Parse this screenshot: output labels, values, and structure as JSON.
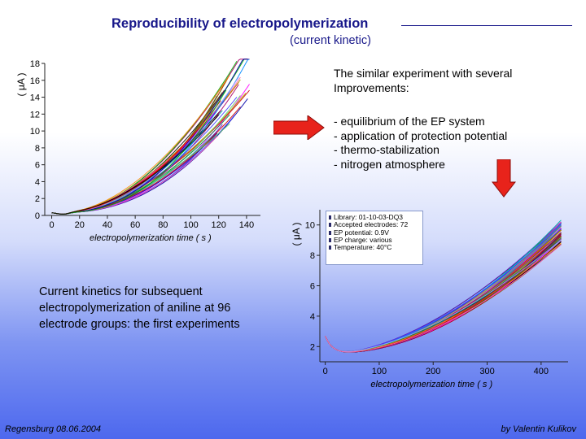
{
  "slide": {
    "title": "Reproducibility of electropolymerization",
    "subtitle": "(current kinetic)",
    "right_intro": [
      "The similar experiment with several",
      "Improvements:"
    ],
    "bullets": [
      "- equilibrium of the EP system",
      "- application of protection potential",
      "- thermo-stabilization",
      "- nitrogen atmosphere"
    ],
    "caption": "Current kinetics for subsequent electropolymerization of aniline at 96 electrode groups: the first experiments",
    "footer_left": "Regensburg 08.06.2004",
    "footer_right": "by Valentin Kulikov",
    "arrow_color": "#e8231b",
    "info_box": [
      "Library: 01-10-03-DQ3",
      "Accepted electrodes: 72",
      "EP potential: 0.9V",
      "EP charge: various",
      "Temperature: 40°C"
    ]
  },
  "chart_data": [
    {
      "type": "line",
      "xlabel": "electropolymerization time ( s )",
      "ylabel": "( μA )",
      "xlim": [
        -5,
        150
      ],
      "ylim": [
        0,
        18
      ],
      "xticks": [
        0,
        20,
        40,
        60,
        80,
        100,
        120,
        140
      ],
      "yticks": [
        0,
        2,
        4,
        6,
        8,
        10,
        12,
        14,
        16,
        18
      ],
      "grid": false,
      "series_count": 40,
      "series_shape": "start near 0.4 at x=0, minimum ~0.2 near x=5–10, rising smoothly and convexly",
      "final_value_range_at_x_130": [
        10.5,
        17.5
      ],
      "curve_colors": [
        "#0000aa",
        "#ff0000",
        "#00aa00",
        "#000000",
        "#ff00ff",
        "#00aaaa",
        "#aaaa00",
        "#6600cc",
        "#ff8800",
        "#0088ff",
        "#aa0066",
        "#008844",
        "#884400",
        "#4444ff",
        "#cc0000",
        "#66cc66",
        "#9999ff",
        "#ff66aa"
      ]
    },
    {
      "type": "line",
      "xlabel": "electropolymerization time ( s )",
      "ylabel": "( μA )",
      "xlim": [
        -10,
        450
      ],
      "ylim": [
        1,
        11
      ],
      "xticks": [
        0,
        100,
        200,
        300,
        400
      ],
      "yticks": [
        2,
        4,
        6,
        8,
        10
      ],
      "grid": false,
      "series_count": 72,
      "series_shape": "start ~2.7 at x=0, dip to ~1.6 near x=20–30, rising to ~9.5–10.3 at x≈480",
      "legend_location": "top-left"
    }
  ]
}
